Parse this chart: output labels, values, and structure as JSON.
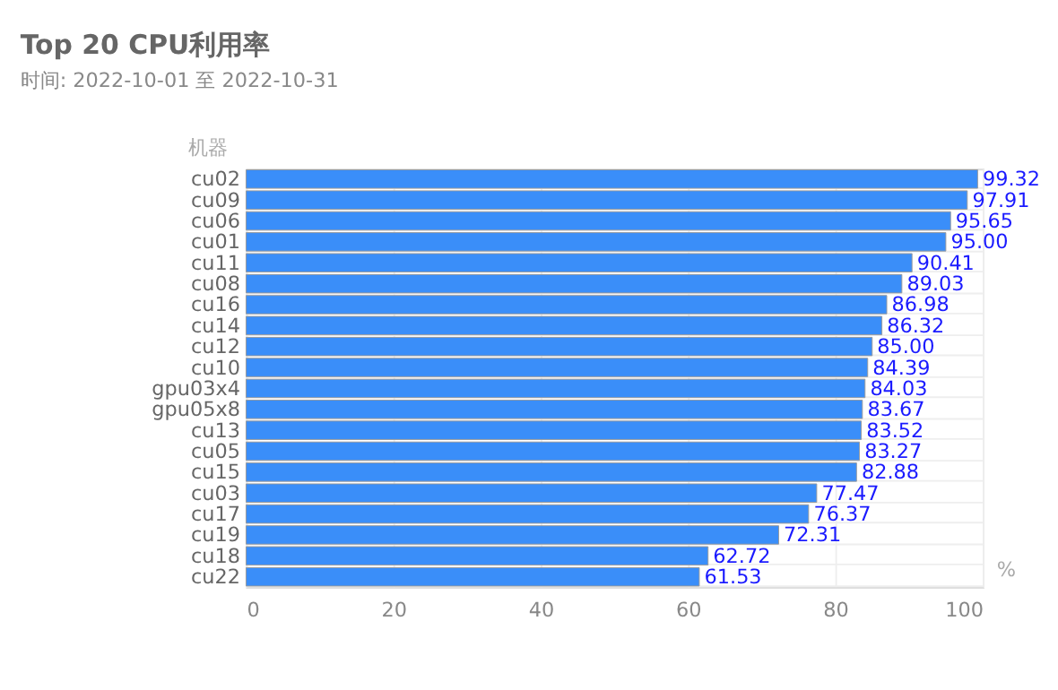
{
  "chart_data": {
    "type": "bar",
    "orientation": "horizontal",
    "title": "Top 20 CPU利用率",
    "subtitle": "时间:  2022-10-01 至 2022-10-31",
    "xlabel": "%",
    "ylabel": "机器",
    "categories": [
      "cu02",
      "cu09",
      "cu06",
      "cu01",
      "cu11",
      "cu08",
      "cu16",
      "cu14",
      "cu12",
      "cu10",
      "gpu03x4",
      "gpu05x8",
      "cu13",
      "cu05",
      "cu15",
      "cu03",
      "cu17",
      "cu19",
      "cu18",
      "cu22"
    ],
    "values": [
      99.32,
      97.91,
      95.65,
      95.0,
      90.41,
      89.03,
      86.98,
      86.32,
      85.0,
      84.39,
      84.03,
      83.67,
      83.52,
      83.27,
      82.88,
      77.47,
      76.37,
      72.31,
      62.72,
      61.53
    ],
    "value_labels": [
      "99.32",
      "97.91",
      "95.65",
      "95.00",
      "90.41",
      "89.03",
      "86.98",
      "86.32",
      "85.00",
      "84.39",
      "84.03",
      "83.67",
      "83.52",
      "83.27",
      "82.88",
      "77.47",
      "76.37",
      "72.31",
      "62.72",
      "61.53"
    ],
    "color": "#3a8ef9",
    "xlim": [
      0,
      100
    ],
    "xticks": [
      0,
      20,
      40,
      60,
      80,
      100
    ],
    "grid": true
  }
}
